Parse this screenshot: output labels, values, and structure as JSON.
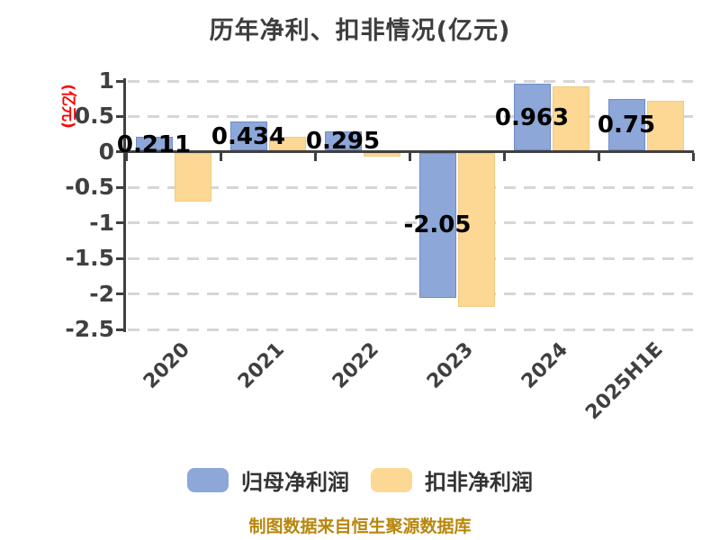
{
  "title": "历年净利、扣非情况(亿元)",
  "y_axis_title": "(亿元)",
  "footer": "制图数据来自恒生聚源数据库",
  "colors": {
    "title": "#3d3d3d",
    "axis": "#404040",
    "tick_label": "#404040",
    "xtick_label": "#3f3f3f",
    "value_label": "#000000",
    "grid": "#d6d6d6",
    "axis_title": "#fe0000",
    "footer": "#b8860b",
    "legend_label": "#333333",
    "blue": "#8ca7d8",
    "blue_border": "#6f8cc8",
    "yellow": "#fcd894",
    "yellow_border": "#eecb7f"
  },
  "legend": [
    {
      "label": "归母净利润",
      "color": "#8ca7d8"
    },
    {
      "label": "扣非净利润",
      "color": "#fcd894"
    }
  ],
  "chart_data": {
    "type": "bar",
    "title": "历年净利、扣非情况(亿元)",
    "xlabel": "",
    "ylabel": "(亿元)",
    "categories": [
      "2020",
      "2021",
      "2022",
      "2023",
      "2024",
      "2025H1E"
    ],
    "series": [
      {
        "name": "归母净利润",
        "color": "#8ca7d8",
        "values": [
          0.211,
          0.434,
          0.295,
          -2.05,
          0.963,
          0.75
        ],
        "labels": [
          "0.211",
          "0.434",
          "0.295",
          "-2.05",
          "0.963",
          "0.75"
        ]
      },
      {
        "name": "扣非净利润",
        "color": "#fcd894",
        "values": [
          -0.7,
          0.21,
          -0.06,
          -2.18,
          0.92,
          0.72
        ],
        "labels": []
      }
    ],
    "ylim": [
      -2.5,
      1
    ],
    "yticks": [
      1,
      0.5,
      0,
      -0.5,
      -1,
      -1.5,
      -2,
      -2.5
    ],
    "ytick_labels": [
      "1",
      "0.5",
      "0",
      "-0.5",
      "-1",
      "-1.5",
      "-2",
      "-2.5"
    ],
    "grid": "horizontal-dashed",
    "legend_position": "bottom",
    "value_labels_series": "归母净利润"
  }
}
